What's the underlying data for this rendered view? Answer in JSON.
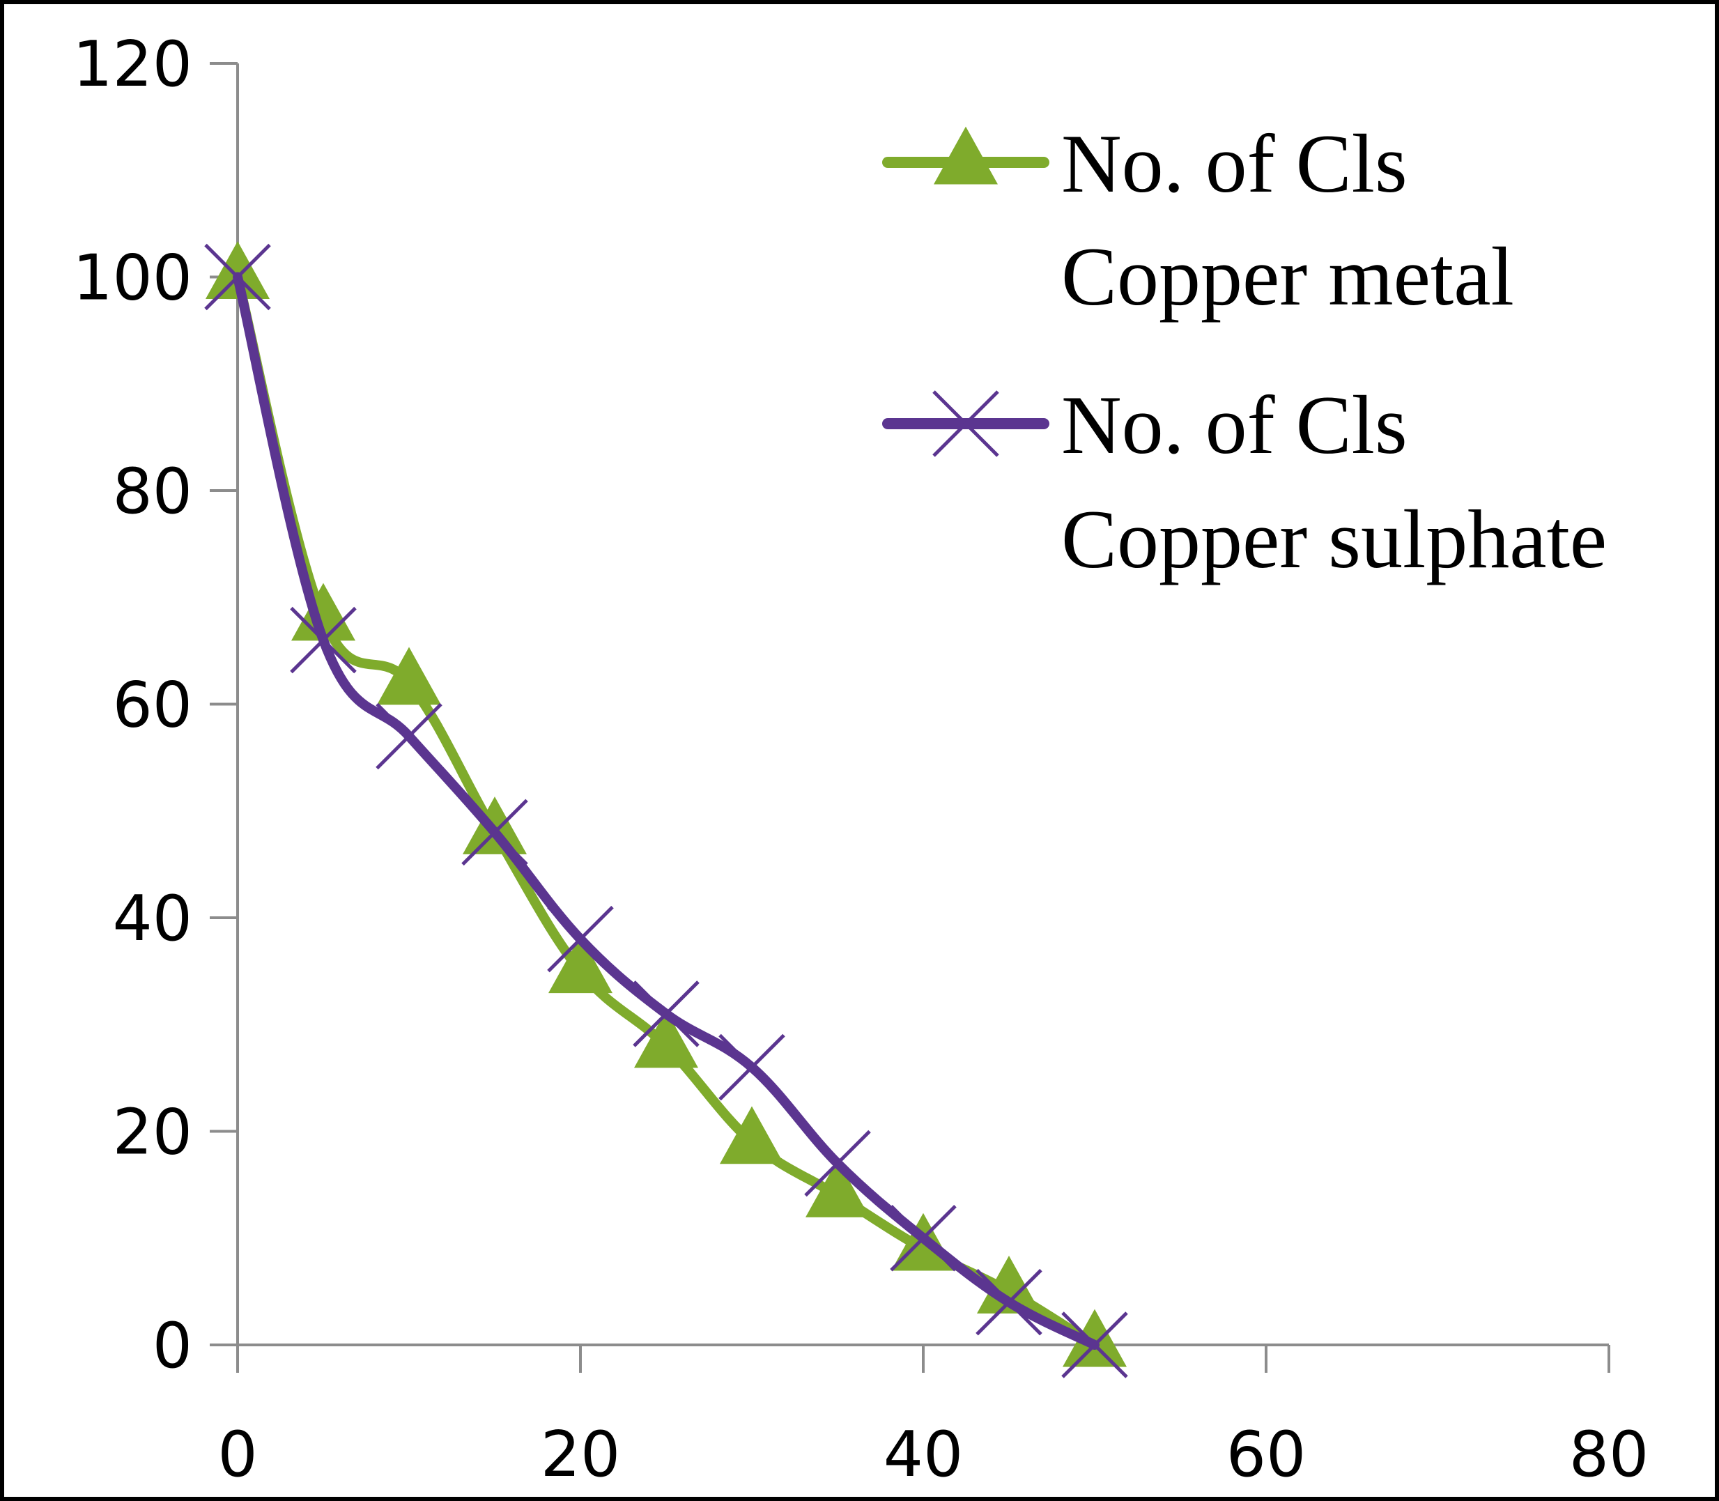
{
  "chart_data": {
    "type": "line",
    "title": "",
    "xlabel": "",
    "ylabel": "",
    "xlim": [
      0,
      80
    ],
    "ylim": [
      0,
      120
    ],
    "x_ticks": [
      "0",
      "20",
      "40",
      "60",
      "80"
    ],
    "y_ticks": [
      "0",
      "20",
      "40",
      "60",
      "80",
      "100",
      "120"
    ],
    "grid": false,
    "legend_position": "top-right",
    "series": [
      {
        "name": "No. of Cls Copper metal",
        "legend_lines": [
          "No. of Cls",
          "Copper metal"
        ],
        "color": "#7fab2c",
        "marker": "triangle",
        "x": [
          0,
          5,
          10,
          15,
          20,
          25,
          30,
          35,
          40,
          45,
          50
        ],
        "y": [
          100,
          68,
          62,
          48,
          35,
          28,
          19,
          14,
          9,
          5,
          0
        ]
      },
      {
        "name": "No. of Cls Copper sulphate",
        "legend_lines": [
          "No. of Cls",
          "Copper sulphate"
        ],
        "color": "#5b3590",
        "marker": "x",
        "x": [
          0,
          5,
          10,
          15,
          20,
          25,
          30,
          35,
          40,
          45,
          50
        ],
        "y": [
          100,
          66,
          57,
          48,
          38,
          31,
          26,
          17,
          10,
          4,
          0
        ]
      }
    ]
  }
}
